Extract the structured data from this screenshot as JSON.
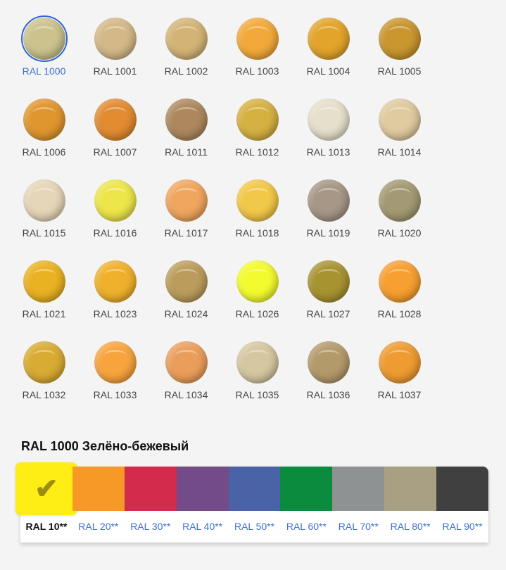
{
  "swatches": [
    {
      "label": "RAL 1000",
      "color": "#cbc28e",
      "selected": true
    },
    {
      "label": "RAL 1001",
      "color": "#d4b887"
    },
    {
      "label": "RAL 1002",
      "color": "#d3b476"
    },
    {
      "label": "RAL 1003",
      "color": "#f2a93a"
    },
    {
      "label": "RAL 1004",
      "color": "#e2a42a"
    },
    {
      "label": "RAL 1005",
      "color": "#c9962f"
    },
    {
      "label": "RAL 1006",
      "color": "#e0962e"
    },
    {
      "label": "RAL 1007",
      "color": "#e28b31"
    },
    {
      "label": "RAL 1011",
      "color": "#ad885e"
    },
    {
      "label": "RAL 1012",
      "color": "#d5b142"
    },
    {
      "label": "RAL 1013",
      "color": "#e6dfcb"
    },
    {
      "label": "RAL 1014",
      "color": "#e0caa0"
    },
    {
      "label": "RAL 1015",
      "color": "#e6d6b8"
    },
    {
      "label": "RAL 1016",
      "color": "#ede64a"
    },
    {
      "label": "RAL 1017",
      "color": "#f0a65e"
    },
    {
      "label": "RAL 1018",
      "color": "#f2c848"
    },
    {
      "label": "RAL 1019",
      "color": "#a69786"
    },
    {
      "label": "RAL 1020",
      "color": "#a39a73"
    },
    {
      "label": "RAL 1021",
      "color": "#e9b222"
    },
    {
      "label": "RAL 1023",
      "color": "#efb12c"
    },
    {
      "label": "RAL 1024",
      "color": "#bb9c5c"
    },
    {
      "label": "RAL 1026",
      "color": "#f3fb2e"
    },
    {
      "label": "RAL 1027",
      "color": "#a89331"
    },
    {
      "label": "RAL 1028",
      "color": "#f79f30"
    },
    {
      "label": "RAL 1032",
      "color": "#d8ab32"
    },
    {
      "label": "RAL 1033",
      "color": "#f8a43e"
    },
    {
      "label": "RAL 1034",
      "color": "#eb9e5b"
    },
    {
      "label": "RAL 1035",
      "color": "#d5c7a0"
    },
    {
      "label": "RAL 1036",
      "color": "#b39a6a"
    },
    {
      "label": "RAL 1037",
      "color": "#ee9b31"
    }
  ],
  "selected_title": "RAL 1000 Зелёно-бежевый",
  "groups": [
    {
      "label": "RAL 10**",
      "color": "#ffee15",
      "selected": true
    },
    {
      "label": "RAL 20**",
      "color": "#f79927"
    },
    {
      "label": "RAL 30**",
      "color": "#d22b4b"
    },
    {
      "label": "RAL 40**",
      "color": "#744b89"
    },
    {
      "label": "RAL 50**",
      "color": "#4963a6"
    },
    {
      "label": "RAL 60**",
      "color": "#0a8b3e"
    },
    {
      "label": "RAL 70**",
      "color": "#8f9293"
    },
    {
      "label": "RAL 80**",
      "color": "#a9a083"
    },
    {
      "label": "RAL 90**",
      "color": "#404040"
    }
  ],
  "check_icon": "checkmark-icon"
}
